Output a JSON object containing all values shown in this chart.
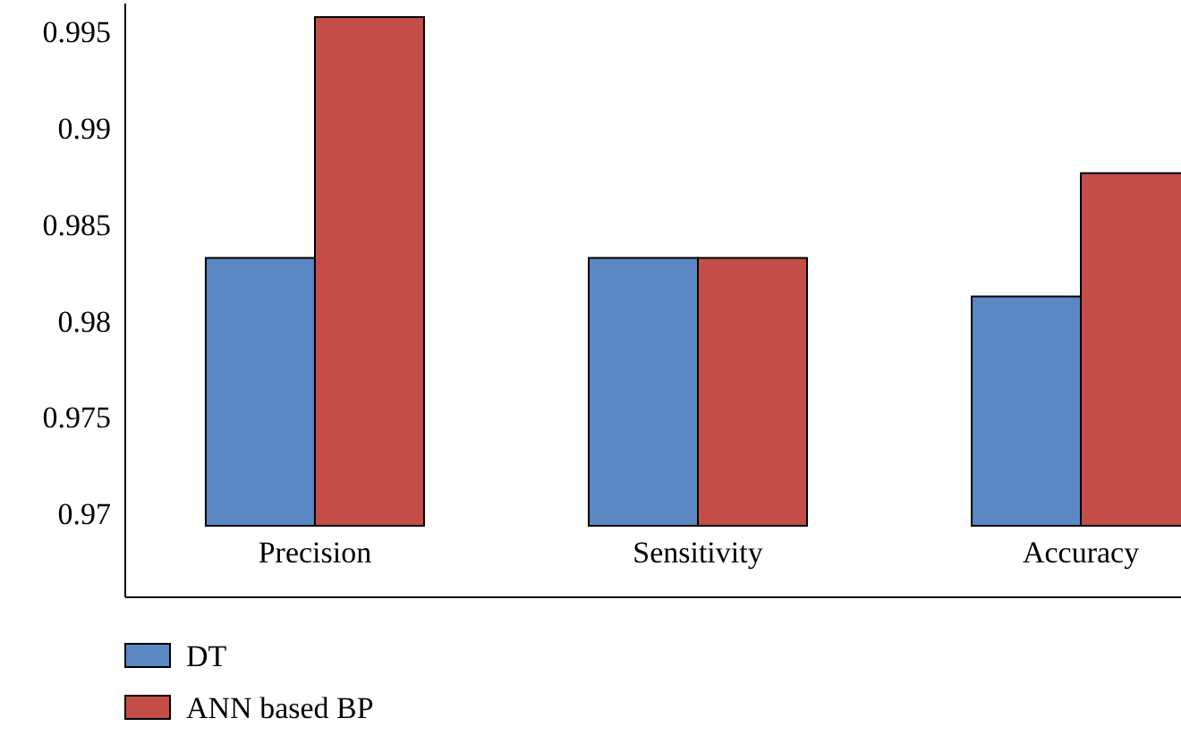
{
  "chart_data": {
    "type": "bar",
    "categories": [
      "Precision",
      "Sensitivity",
      "Accuracy"
    ],
    "series": [
      {
        "name": "DT",
        "color": "#5b87c2",
        "values": [
          0.9833,
          0.9833,
          0.9813
        ]
      },
      {
        "name": "ANN based BP",
        "color": "#c34e49",
        "values": [
          0.9958,
          0.9833,
          0.9877
        ]
      }
    ],
    "ylim": [
      0.9694,
      0.9965
    ],
    "yticks": [
      0.97,
      0.975,
      0.98,
      0.985,
      0.99,
      0.995
    ],
    "grid": false,
    "legend": "bottom left"
  }
}
